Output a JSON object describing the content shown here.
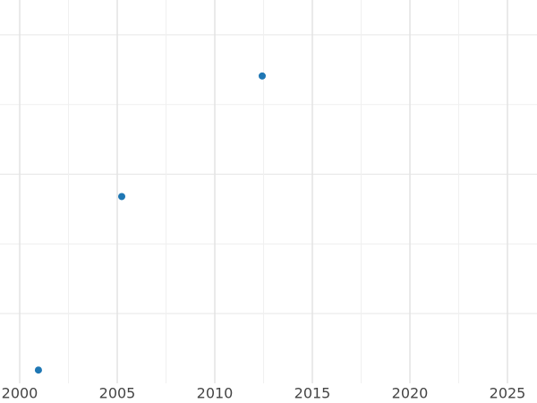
{
  "chart_data": {
    "type": "scatter",
    "x": [
      2000.96,
      2005.23,
      2012.43
    ],
    "series": [
      {
        "color": "#1f77b4",
        "values": [
          0.19,
          2.68,
          4.41
        ]
      }
    ],
    "xlim": [
      1999,
      2026.5
    ],
    "xticks": [
      2000,
      2005,
      2010,
      2015,
      2020,
      2025
    ],
    "xminor": [
      2002.5,
      2007.5,
      2012.5,
      2017.5,
      2022.5
    ],
    "ylim": [
      0,
      5.5
    ],
    "ygrid": [
      1,
      2,
      3,
      4,
      5
    ],
    "grid": true
  }
}
